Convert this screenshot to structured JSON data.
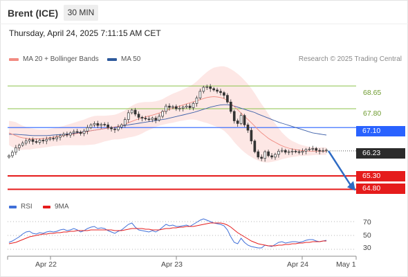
{
  "header": {
    "title": "Brent (ICE)",
    "timeframe": "30 MIN",
    "timestamp": "Thursday, April 24, 2025 7:11:15 AM CET"
  },
  "legend": {
    "ma20": {
      "label": "MA 20 + Bollinger Bands",
      "color": "#f28b82"
    },
    "ma50": {
      "label": "MA 50",
      "color": "#2e5a9c"
    },
    "credit": "Research © 2025 Trading Central"
  },
  "levels": {
    "r2": "68.65",
    "r1": "67.80",
    "pivot": "67.10",
    "last": "66.23",
    "s1": "65.30",
    "s2": "64.80"
  },
  "colors": {
    "resistance": "#8bc34a",
    "pivot": "#2962ff",
    "support": "#e51c1c",
    "last": "#2b2b2b",
    "candle_up": "#2e7d32",
    "candle_down": "#c62828",
    "rsi": "#3f6fd8",
    "rsi_ma": "#e51c1c",
    "arrow": "#2e6bc4"
  },
  "rsi_legend": {
    "rsi": "RSI",
    "ma": "9MA"
  },
  "rsi_axis": [
    "70",
    "50",
    "30"
  ],
  "x_axis": [
    "Apr 22",
    "Apr 23",
    "Apr 24",
    "May 1"
  ],
  "chart_data": {
    "type": "candlestick",
    "price_series": [
      66.05,
      66.18,
      66.35,
      66.44,
      66.52,
      66.6,
      66.65,
      66.58,
      66.55,
      66.63,
      66.6,
      66.66,
      66.7,
      66.68,
      66.74,
      66.8,
      66.85,
      66.82,
      66.9,
      66.95,
      66.93,
      66.88,
      66.97,
      67.1,
      67.2,
      67.25,
      67.18,
      67.22,
      67.2,
      67.1,
      67.05,
      67.02,
      67.12,
      67.2,
      67.4,
      67.65,
      67.75,
      67.6,
      67.48,
      67.45,
      67.42,
      67.4,
      67.45,
      67.38,
      67.52,
      67.7,
      67.9,
      67.85,
      67.88,
      67.8,
      67.82,
      67.86,
      67.9,
      67.84,
      68.0,
      68.2,
      68.45,
      68.6,
      68.62,
      68.55,
      68.5,
      68.45,
      68.4,
      68.3,
      68.05,
      67.7,
      67.35,
      67.25,
      67.55,
      67.2,
      67.0,
      66.6,
      66.2,
      66.0,
      65.95,
      66.2,
      66.05,
      66.0,
      66.1,
      66.22,
      66.25,
      66.18,
      66.2,
      66.22,
      66.2,
      66.18,
      66.22,
      66.28,
      66.3,
      66.32,
      66.25,
      66.22,
      66.24,
      66.26
    ],
    "ma20": [
      66.9,
      66.85,
      66.8,
      66.75,
      66.72,
      66.7,
      66.68,
      66.68,
      66.68,
      66.68,
      66.69,
      66.7,
      66.72,
      66.74,
      66.76,
      66.78,
      66.8,
      66.82,
      66.84,
      66.86,
      66.88,
      66.9,
      66.92,
      66.95,
      66.98,
      67.0,
      67.02,
      67.04,
      67.06,
      67.08,
      67.1,
      67.12,
      67.14,
      67.18,
      67.22,
      67.28,
      67.33,
      67.38,
      67.42,
      67.46,
      67.5,
      67.53,
      67.56,
      67.6,
      67.64,
      67.68,
      67.73,
      67.78,
      67.82,
      67.86,
      67.9,
      67.94,
      67.98,
      68.02,
      68.06,
      68.1,
      68.14,
      68.18,
      68.22,
      68.24,
      68.25,
      68.24,
      68.22,
      68.18,
      68.1,
      68.0,
      67.88,
      67.76,
      67.64,
      67.52,
      67.4,
      67.28,
      67.15,
      67.02,
      66.9,
      66.8,
      66.7,
      66.62,
      66.55,
      66.48,
      66.42,
      66.37,
      66.33,
      66.3,
      66.28,
      66.26,
      66.24,
      66.23,
      66.22,
      66.22,
      66.22,
      66.22,
      66.22,
      66.22
    ],
    "ma50": [
      66.85,
      66.85,
      66.85,
      66.84,
      66.83,
      66.82,
      66.81,
      66.8,
      66.8,
      66.8,
      66.8,
      66.8,
      66.81,
      66.82,
      66.83,
      66.84,
      66.85,
      66.86,
      66.87,
      66.88,
      66.9,
      66.92,
      66.94,
      66.96,
      66.98,
      67.0,
      67.02,
      67.04,
      67.06,
      67.08,
      67.1,
      67.12,
      67.14,
      67.16,
      67.18,
      67.2,
      67.22,
      67.24,
      67.26,
      67.28,
      67.3,
      67.32,
      67.34,
      67.36,
      67.38,
      67.4,
      67.42,
      67.45,
      67.48,
      67.51,
      67.54,
      67.57,
      67.6,
      67.63,
      67.66,
      67.7,
      67.74,
      67.78,
      67.82,
      67.86,
      67.89,
      67.92,
      67.94,
      67.95,
      67.95,
      67.93,
      67.9,
      67.86,
      67.82,
      67.78,
      67.74,
      67.7,
      67.66,
      67.6,
      67.55,
      67.5,
      67.45,
      67.4,
      67.35,
      67.3,
      67.26,
      67.22,
      67.18,
      67.14,
      67.1,
      67.06,
      67.02,
      66.98,
      66.94,
      66.9,
      66.88,
      66.86,
      66.84,
      66.82
    ],
    "bb_width": [
      0.45,
      0.48,
      0.5,
      0.48,
      0.45,
      0.42,
      0.4,
      0.38,
      0.36,
      0.35,
      0.34,
      0.33,
      0.33,
      0.33,
      0.34,
      0.35,
      0.36,
      0.38,
      0.4,
      0.42,
      0.44,
      0.46,
      0.48,
      0.5,
      0.52,
      0.53,
      0.52,
      0.5,
      0.48,
      0.47,
      0.46,
      0.46,
      0.48,
      0.5,
      0.52,
      0.55,
      0.58,
      0.6,
      0.6,
      0.58,
      0.55,
      0.52,
      0.5,
      0.48,
      0.47,
      0.48,
      0.5,
      0.52,
      0.54,
      0.55,
      0.56,
      0.58,
      0.6,
      0.62,
      0.66,
      0.72,
      0.8,
      0.88,
      0.95,
      1.02,
      1.08,
      1.12,
      1.16,
      1.2,
      1.24,
      1.28,
      1.32,
      1.34,
      1.35,
      1.34,
      1.32,
      1.28,
      1.22,
      1.15,
      1.08,
      1.0,
      0.9,
      0.8,
      0.7,
      0.6,
      0.5,
      0.42,
      0.35,
      0.3,
      0.26,
      0.22,
      0.2,
      0.18,
      0.16,
      0.15,
      0.14,
      0.14,
      0.14,
      0.14
    ],
    "rsi": [
      40,
      42,
      45,
      48,
      52,
      55,
      56,
      53,
      52,
      54,
      53,
      55,
      56,
      55,
      56,
      58,
      59,
      57,
      58,
      60,
      58,
      55,
      57,
      60,
      62,
      63,
      60,
      61,
      60,
      57,
      55,
      53,
      56,
      58,
      62,
      66,
      68,
      62,
      58,
      57,
      56,
      55,
      57,
      55,
      58,
      62,
      66,
      64,
      65,
      63,
      63,
      64,
      65,
      63,
      66,
      69,
      72,
      74,
      72,
      70,
      68,
      67,
      66,
      64,
      58,
      48,
      40,
      38,
      46,
      40,
      36,
      34,
      33,
      32,
      32,
      36,
      35,
      34,
      37,
      40,
      41,
      39,
      40,
      41,
      41,
      40,
      41,
      43,
      44,
      44,
      42,
      41,
      42,
      43
    ],
    "rsi_ma": [
      38,
      39,
      40,
      42,
      44,
      46,
      48,
      49,
      50,
      51,
      52,
      52,
      53,
      53,
      54,
      54,
      55,
      55,
      56,
      56,
      57,
      57,
      57,
      57,
      58,
      58,
      58,
      58,
      58,
      58,
      58,
      57,
      57,
      57,
      58,
      59,
      60,
      60,
      60,
      60,
      59,
      59,
      58,
      58,
      58,
      59,
      60,
      60,
      61,
      61,
      62,
      62,
      63,
      63,
      63,
      64,
      65,
      66,
      67,
      68,
      68,
      68,
      68,
      67,
      65,
      62,
      58,
      54,
      51,
      48,
      45,
      42,
      40,
      38,
      37,
      36,
      35,
      35,
      35,
      36,
      36,
      37,
      37,
      38,
      38,
      39,
      39,
      40,
      40,
      41,
      41,
      41,
      42,
      42
    ],
    "levels": [
      68.65,
      67.8,
      67.1,
      66.23,
      65.3,
      64.8
    ],
    "y_range": [
      64.5,
      69.4
    ],
    "rsi_range": [
      20,
      80
    ]
  }
}
